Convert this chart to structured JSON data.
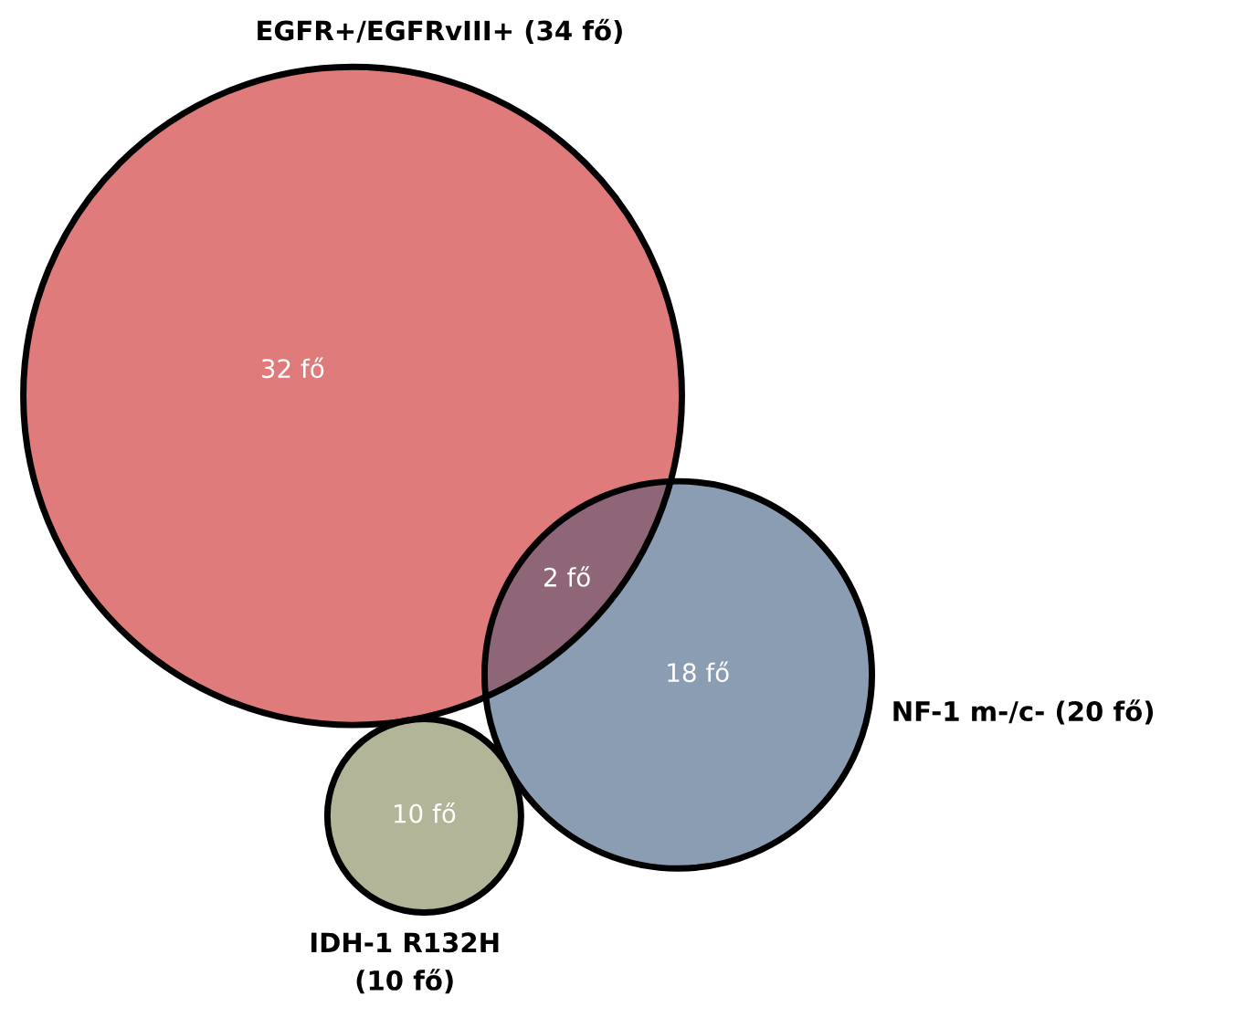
{
  "chart_data": {
    "type": "other",
    "categories": [
      null,
      null,
      null,
      null
    ],
    "values": [
      32,
      2,
      18,
      10
    ],
    "value_labels": [
      "32 fő",
      "2 fő",
      "18 fő",
      "10 fő"
    ],
    "colors": [
      "#e07b7b",
      "#8e6678",
      "#8a9db3",
      "#b3b598"
    ],
    "annotations": [
      "EGFR+/EGFRvIII+ (34 fő)",
      "NF-1 m-/c- (20 fő)",
      "IDH-1 R132H\n(10 fő)"
    ]
  }
}
